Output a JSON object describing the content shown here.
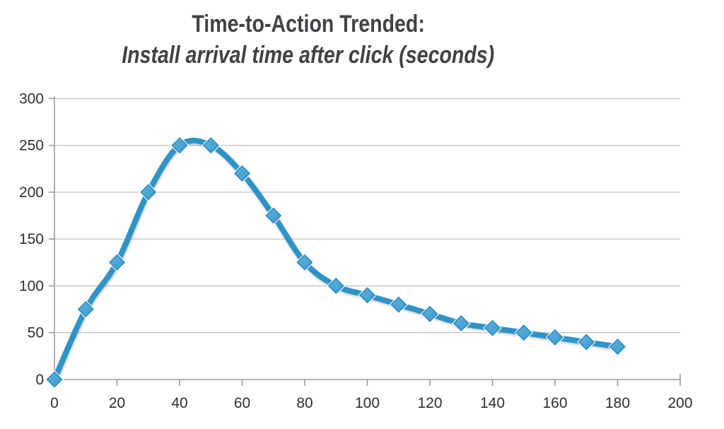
{
  "chart_data": {
    "type": "line",
    "smoothed": true,
    "title": "Time-to-Action Trended:",
    "subtitle": "Install arrival time after click (seconds)",
    "xlabel": "",
    "ylabel": "",
    "x": [
      0,
      10,
      20,
      30,
      40,
      50,
      60,
      70,
      80,
      90,
      100,
      110,
      120,
      130,
      140,
      150,
      160,
      170,
      180
    ],
    "series": [
      {
        "name": "Install arrival time after click (seconds)",
        "values": [
          0,
          75,
          125,
          200,
          250,
          250,
          220,
          175,
          125,
          100,
          90,
          80,
          70,
          60,
          55,
          50,
          45,
          40,
          35
        ]
      }
    ],
    "xlim": [
      0,
      200
    ],
    "ylim": [
      0,
      300
    ],
    "x_ticks": [
      0,
      20,
      40,
      60,
      80,
      100,
      120,
      140,
      160,
      180,
      200
    ],
    "y_ticks": [
      0,
      50,
      100,
      150,
      200,
      250,
      300
    ],
    "grid": "horizontal",
    "legend_position": "none",
    "marker": "diamond",
    "colors": {
      "background": "#ffffff",
      "line": "#2e93c6",
      "marker_fill_light": "#5cb1dd",
      "marker_fill_dark": "#3d9bce",
      "marker_stroke": "#2587ba",
      "marker_halo": "#ffffff",
      "grid": "#c7c7c7",
      "axis": "#9b9b9b",
      "title_text": "#3f4246",
      "tick_text": "#2f2f2f"
    }
  }
}
